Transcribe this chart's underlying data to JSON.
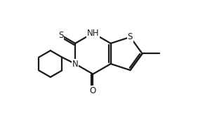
{
  "background_color": "#ffffff",
  "line_color": "#1a1a1a",
  "line_width": 1.6,
  "font_size_atom": 8.5,
  "xlim": [
    0,
    10
  ],
  "ylim": [
    0,
    5.8
  ]
}
